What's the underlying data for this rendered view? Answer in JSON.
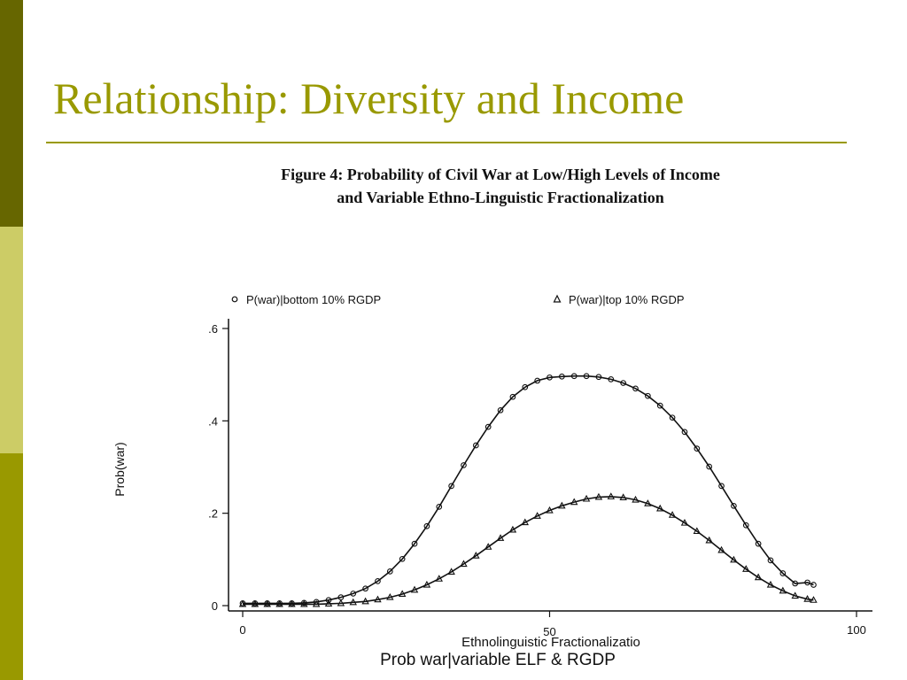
{
  "slide": {
    "title": "Relationship: Diversity and Income",
    "figure_caption_line1": "Figure 4: Probability of Civil War at Low/High Levels of Income",
    "figure_caption_line2": "and Variable Ethno-Linguistic Fractionalization",
    "accent_color": "#999900",
    "sidebar_colors": [
      "#666600",
      "#cccc66",
      "#999900"
    ]
  },
  "chart_data": {
    "type": "line",
    "title": "",
    "subtitle": "Prob war|variable ELF & RGDP",
    "xlabel": "Ethnolinguistic Fractionalizatio",
    "ylabel": "Prob(war)",
    "xlim": [
      0,
      100
    ],
    "ylim": [
      0,
      0.6
    ],
    "x_ticks": [
      0,
      50,
      100
    ],
    "x_tick_labels": [
      "0",
      "50",
      "100"
    ],
    "y_ticks": [
      0,
      0.2,
      0.4,
      0.6
    ],
    "y_tick_labels": [
      "0",
      ".2",
      ".4",
      ".6"
    ],
    "grid": false,
    "legend_position": "top",
    "series": [
      {
        "name": "P(war)|bottom 10% RGDP",
        "marker": "circle",
        "x": [
          0,
          2,
          4,
          6,
          8,
          10,
          12,
          14,
          16,
          18,
          20,
          22,
          24,
          26,
          28,
          30,
          32,
          34,
          36,
          38,
          40,
          42,
          44,
          46,
          48,
          50,
          52,
          54,
          56,
          58,
          60,
          62,
          64,
          66,
          68,
          70,
          72,
          74,
          76,
          78,
          80,
          82,
          84,
          86,
          88,
          90,
          92,
          93
        ],
        "y": [
          0.005,
          0.005,
          0.005,
          0.005,
          0.005,
          0.006,
          0.008,
          0.012,
          0.018,
          0.026,
          0.037,
          0.053,
          0.074,
          0.101,
          0.134,
          0.172,
          0.214,
          0.259,
          0.304,
          0.347,
          0.387,
          0.423,
          0.452,
          0.473,
          0.487,
          0.494,
          0.496,
          0.497,
          0.497,
          0.495,
          0.49,
          0.482,
          0.47,
          0.454,
          0.433,
          0.407,
          0.376,
          0.34,
          0.301,
          0.259,
          0.216,
          0.174,
          0.134,
          0.098,
          0.07,
          0.048,
          0.05,
          0.045
        ]
      },
      {
        "name": "P(war)|top 10% RGDP",
        "marker": "triangle",
        "x": [
          0,
          2,
          4,
          6,
          8,
          10,
          12,
          14,
          16,
          18,
          20,
          22,
          24,
          26,
          28,
          30,
          32,
          34,
          36,
          38,
          40,
          42,
          44,
          46,
          48,
          50,
          52,
          54,
          56,
          58,
          60,
          62,
          64,
          66,
          68,
          70,
          72,
          74,
          76,
          78,
          80,
          82,
          84,
          86,
          88,
          90,
          92,
          93
        ],
        "y": [
          0.003,
          0.003,
          0.003,
          0.003,
          0.003,
          0.003,
          0.003,
          0.004,
          0.005,
          0.007,
          0.009,
          0.013,
          0.018,
          0.025,
          0.034,
          0.045,
          0.058,
          0.073,
          0.09,
          0.108,
          0.127,
          0.146,
          0.164,
          0.18,
          0.194,
          0.206,
          0.216,
          0.224,
          0.231,
          0.235,
          0.236,
          0.234,
          0.229,
          0.221,
          0.21,
          0.196,
          0.179,
          0.161,
          0.141,
          0.12,
          0.099,
          0.079,
          0.061,
          0.045,
          0.032,
          0.021,
          0.014,
          0.012
        ]
      }
    ]
  }
}
